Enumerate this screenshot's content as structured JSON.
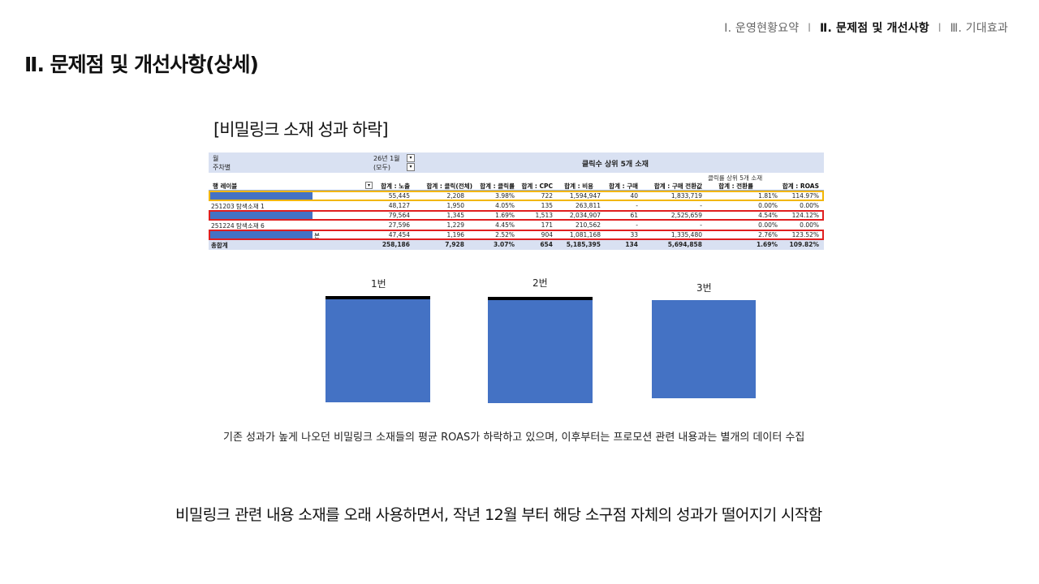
{
  "nav": {
    "items": [
      {
        "label": "Ⅰ. 운영현황요약",
        "active": false
      },
      {
        "label": "Ⅱ. 문제점 및 개선사항",
        "active": true
      },
      {
        "label": "Ⅲ. 기대효과",
        "active": false
      }
    ],
    "separator": "I"
  },
  "page_title": "Ⅱ. 문제점 및 개선사항(상세)",
  "section_label": "[비밀링크 소재 성과 하락]",
  "pivot": {
    "filter_labels": [
      "월",
      "주차별"
    ],
    "filter_values": [
      "26년 1월",
      "(모두)"
    ],
    "title": "클릭수 상위 5개 소재",
    "subtitle": "클릭률 상위 5개 소재",
    "columns": [
      "행 레이블",
      "합계 : 노출",
      "합계 : 클릭(전체)",
      "합계 : 클릭률",
      "합계 : CPC",
      "합계 : 비용",
      "합계 : 구매",
      "합계 : 구매 전환값",
      "합계 : 전환률",
      "합계 : ROAS"
    ],
    "rows": [
      {
        "label": "",
        "redacted": true,
        "values": [
          "55,445",
          "2,208",
          "3.98%",
          "722",
          "1,594,947",
          "40",
          "1,833,719",
          "1.81%",
          "114.97%"
        ]
      },
      {
        "label": "251203 탐색소재 1",
        "redacted": false,
        "values": [
          "48,127",
          "1,950",
          "4.05%",
          "135",
          "263,811",
          "-",
          "-",
          "0.00%",
          "0.00%"
        ]
      },
      {
        "label": "",
        "redacted": true,
        "values": [
          "79,564",
          "1,345",
          "1.69%",
          "1,513",
          "2,034,907",
          "61",
          "2,525,659",
          "4.54%",
          "124.12%"
        ]
      },
      {
        "label": "251224 탐색소재 6",
        "redacted": false,
        "values": [
          "27,596",
          "1,229",
          "4.45%",
          "171",
          "210,562",
          "-",
          "-",
          "0.00%",
          "0.00%"
        ]
      },
      {
        "label": "본",
        "redacted": true,
        "values": [
          "47,454",
          "1,196",
          "2.52%",
          "904",
          "1,081,168",
          "33",
          "1,335,480",
          "2.76%",
          "123.52%"
        ]
      }
    ],
    "total": {
      "label": "총합계",
      "values": [
        "258,186",
        "7,928",
        "3.07%",
        "654",
        "5,185,395",
        "134",
        "5,694,858",
        "1.69%",
        "109.82%"
      ]
    }
  },
  "ads": [
    {
      "label": "1번"
    },
    {
      "label": "2번"
    },
    {
      "label": "3번"
    }
  ],
  "caption": "기존 성과가 높게 나오던 비밀링크 소재들의 평균 ROAS가 하락하고 있으며, 이후부터는 프로모션 관련 내용과는 별개의 데이터 수집",
  "conclusion": "비밀링크 관련 내용 소재를 오래 사용하면서, 작년 12월 부터 해당 소구점 자체의 성과가 떨어지기 시작함",
  "colors": {
    "header_bg": "#d9e1f2",
    "redaction": "#4472c4",
    "highlight_yellow": "#f2b600",
    "highlight_red": "#e02020",
    "ad_blue": "#4472c4"
  }
}
